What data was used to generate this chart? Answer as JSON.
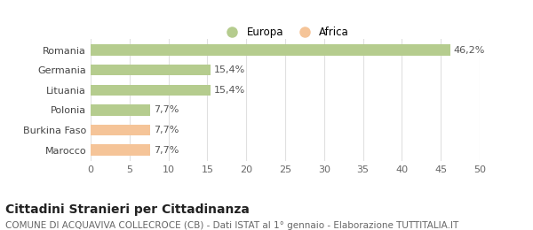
{
  "categories": [
    "Marocco",
    "Burkina Faso",
    "Polonia",
    "Lituania",
    "Germania",
    "Romania"
  ],
  "values": [
    7.7,
    7.7,
    7.7,
    15.4,
    15.4,
    46.2
  ],
  "labels": [
    "7,7%",
    "7,7%",
    "7,7%",
    "15,4%",
    "15,4%",
    "46,2%"
  ],
  "colors": [
    "#f5c498",
    "#f5c498",
    "#b5cc8e",
    "#b5cc8e",
    "#b5cc8e",
    "#b5cc8e"
  ],
  "legend": [
    {
      "label": "Europa",
      "color": "#b5cc8e"
    },
    {
      "label": "Africa",
      "color": "#f5c498"
    }
  ],
  "xlim": [
    0,
    50
  ],
  "xticks": [
    0,
    5,
    10,
    15,
    20,
    25,
    30,
    35,
    40,
    45,
    50
  ],
  "title": "Cittadini Stranieri per Cittadinanza",
  "subtitle": "COMUNE DI ACQUAVIVA COLLECROCE (CB) - Dati ISTAT al 1° gennaio - Elaborazione TUTTITALIA.IT",
  "background_color": "#ffffff",
  "grid_color": "#e0e0e0",
  "bar_height": 0.55,
  "title_fontsize": 10,
  "subtitle_fontsize": 7.5,
  "tick_label_fontsize": 8,
  "label_fontsize": 8
}
